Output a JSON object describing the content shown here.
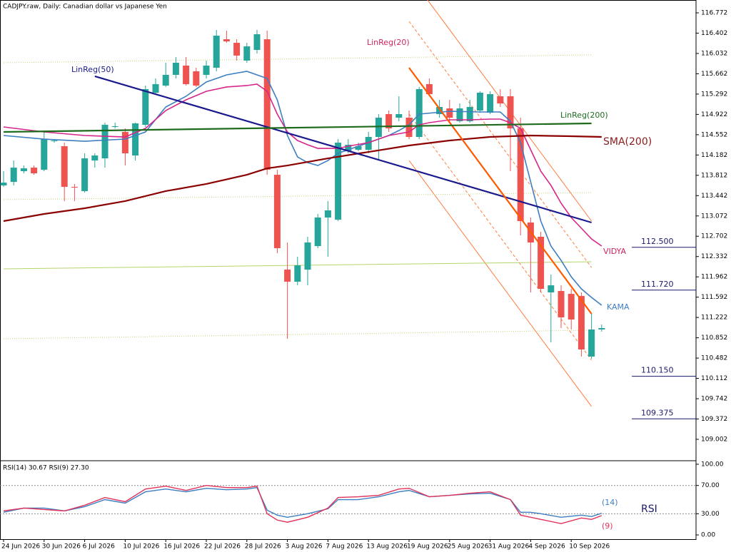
{
  "chart_data": [
    {
      "type": "candlestick",
      "title": "CADJPY.raw, Daily:  Canadian dollar vs Japanese Yen",
      "categories": [
        "24 Jun 2026",
        null,
        null,
        null,
        "30 Jun 2026",
        null,
        null,
        null,
        "6 Jul 2026",
        null,
        null,
        null,
        "10 Jul 2026",
        null,
        null,
        null,
        "16 Jul 2026",
        null,
        null,
        null,
        "22 Jul 2026",
        null,
        null,
        null,
        "28 Jul 2026",
        null,
        null,
        null,
        "3 Aug 2026",
        null,
        null,
        null,
        "7 Aug 2026",
        null,
        null,
        null,
        "13 Aug 2026",
        null,
        null,
        null,
        "19 Aug 2026",
        null,
        null,
        null,
        "25 Aug 2026",
        null,
        null,
        null,
        "31 Aug 2026",
        null,
        null,
        null,
        "4 Sep 2026",
        null,
        null,
        null,
        "10 Sep 2026",
        null,
        null,
        null
      ],
      "ohlc": [
        [
          113.628,
          113.887,
          113.602,
          113.679
        ],
        [
          113.692,
          114.082,
          113.628,
          113.952
        ],
        [
          113.887,
          113.991,
          113.848,
          113.939
        ],
        [
          113.952,
          113.991,
          113.822,
          113.848
        ],
        [
          113.913,
          114.602,
          113.887,
          114.472
        ],
        [
          114.433,
          114.472,
          114.407,
          114.446
        ],
        [
          114.342,
          114.407,
          113.342,
          113.602
        ],
        [
          113.602,
          113.654,
          113.342,
          113.589
        ],
        [
          113.524,
          114.212,
          113.498,
          114.121
        ],
        [
          114.082,
          114.212,
          113.952,
          114.173
        ],
        [
          114.121,
          114.771,
          113.952,
          114.732
        ],
        [
          114.693,
          114.771,
          114.667,
          114.706
        ],
        [
          114.602,
          114.667,
          113.991,
          114.212
        ],
        [
          114.173,
          114.771,
          114.082,
          114.758
        ],
        [
          114.732,
          115.447,
          114.693,
          115.382
        ],
        [
          115.317,
          115.577,
          115.291,
          115.473
        ],
        [
          115.447,
          115.863,
          115.421,
          115.642
        ],
        [
          115.642,
          115.967,
          115.577,
          115.863
        ],
        [
          115.811,
          115.967,
          115.447,
          115.473
        ],
        [
          115.707,
          115.772,
          115.421,
          115.447
        ],
        [
          115.642,
          115.902,
          115.577,
          115.811
        ],
        [
          115.772,
          116.46,
          115.707,
          116.356
        ],
        [
          116.291,
          116.447,
          116.226,
          116.252
        ],
        [
          116.226,
          116.291,
          115.902,
          115.993
        ],
        [
          115.902,
          116.226,
          115.863,
          116.161
        ],
        [
          116.096,
          116.46,
          116.031,
          116.382
        ],
        [
          116.291,
          116.447,
          113.822,
          113.913
        ],
        [
          113.822,
          113.913,
          112.393,
          112.484
        ],
        [
          112.094,
          112.588,
          110.834,
          111.873
        ],
        [
          111.873,
          112.328,
          111.808,
          112.172
        ],
        [
          112.094,
          112.692,
          111.808,
          112.588
        ],
        [
          112.523,
          113.108,
          112.484,
          113.043
        ],
        [
          113.043,
          113.342,
          112.328,
          113.173
        ],
        [
          113.004,
          114.472,
          112.978,
          114.407
        ],
        [
          114.251,
          114.472,
          114.212,
          114.368
        ],
        [
          114.277,
          114.407,
          114.251,
          114.342
        ],
        [
          114.277,
          114.602,
          114.212,
          114.511
        ],
        [
          114.511,
          114.927,
          114.082,
          114.862
        ],
        [
          114.927,
          114.992,
          114.602,
          114.667
        ],
        [
          114.862,
          115.252,
          114.797,
          114.927
        ],
        [
          114.862,
          114.992,
          114.472,
          114.511
        ],
        [
          114.511,
          115.421,
          114.472,
          115.382
        ],
        [
          115.473,
          115.577,
          115.252,
          115.291
        ],
        [
          114.927,
          115.187,
          114.862,
          115.057
        ],
        [
          115.031,
          115.187,
          114.797,
          114.862
        ],
        [
          114.797,
          115.122,
          114.771,
          115.031
        ],
        [
          114.797,
          115.187,
          114.771,
          115.057
        ],
        [
          114.992,
          115.343,
          114.953,
          115.317
        ],
        [
          114.953,
          115.343,
          114.927,
          115.291
        ],
        [
          115.252,
          115.382,
          115.057,
          115.122
        ],
        [
          115.252,
          115.382,
          113.887,
          114.667
        ],
        [
          114.667,
          114.862,
          112.718,
          112.978
        ],
        [
          112.952,
          113.043,
          111.678,
          112.588
        ],
        [
          112.692,
          112.783,
          111.678,
          111.743
        ],
        [
          111.678,
          112.003,
          110.769,
          111.808
        ],
        [
          111.704,
          111.808,
          111.029,
          111.224
        ],
        [
          111.652,
          111.743,
          111.003,
          111.185
        ],
        [
          111.613,
          111.678,
          110.509,
          110.639
        ],
        [
          110.509,
          111.289,
          110.47,
          111.003
        ],
        [
          111.003,
          111.094,
          110.964,
          111.029
        ]
      ],
      "up_color": "#26a69a",
      "down_color": "#ef5350",
      "lines": [
        {
          "name": "KAMA",
          "color": "#3d7fc1",
          "x": [
            0,
            4,
            8,
            12,
            14,
            16,
            18,
            20,
            22,
            24,
            26,
            27,
            28,
            29,
            30,
            31,
            32,
            33,
            35,
            36,
            37,
            38,
            39,
            40,
            41,
            44,
            47,
            49,
            50,
            51,
            52,
            53,
            54,
            55,
            56,
            57,
            58,
            59
          ],
          "values": [
            114.537,
            114.472,
            114.433,
            114.472,
            114.602,
            115.057,
            115.252,
            115.512,
            115.642,
            115.707,
            115.577,
            115.187,
            114.537,
            114.147,
            114.043,
            113.991,
            114.082,
            114.212,
            114.342,
            114.407,
            114.472,
            114.537,
            114.628,
            114.732,
            114.927,
            114.979,
            114.966,
            114.966,
            114.797,
            114.407,
            113.692,
            112.978,
            112.523,
            112.263,
            111.964,
            111.743,
            111.588,
            111.445
          ]
        },
        {
          "name": "VIDYA",
          "color": "#d6268a",
          "x": [
            0,
            4,
            8,
            12,
            14,
            16,
            18,
            20,
            22,
            24,
            25,
            26,
            27,
            28,
            29,
            30,
            31,
            33,
            34,
            36,
            38,
            40,
            41,
            42,
            44,
            46,
            48,
            49,
            50,
            51,
            52,
            53,
            54,
            55,
            56,
            57,
            58,
            59
          ],
          "values": [
            114.693,
            114.602,
            114.537,
            114.511,
            114.667,
            114.992,
            115.187,
            115.343,
            115.421,
            115.447,
            115.473,
            115.343,
            114.927,
            114.602,
            114.446,
            114.368,
            114.303,
            114.303,
            114.342,
            114.407,
            114.537,
            114.602,
            114.732,
            114.771,
            114.823,
            114.823,
            114.836,
            114.836,
            114.771,
            114.667,
            114.277,
            113.887,
            113.628,
            113.303,
            113.043,
            112.848,
            112.653,
            112.523
          ]
        },
        {
          "name": "SMA(200)",
          "color": "#8b0000",
          "x": [
            0,
            4,
            8,
            12,
            16,
            20,
            24,
            26,
            28,
            32,
            36,
            40,
            44,
            48,
            52,
            56,
            59
          ],
          "values": [
            112.978,
            113.108,
            113.212,
            113.342,
            113.524,
            113.654,
            113.822,
            113.939,
            113.991,
            114.121,
            114.238,
            114.355,
            114.446,
            114.511,
            114.537,
            114.524,
            114.511
          ]
        },
        {
          "name": "LinReg(50)",
          "color": "#1a1a8c",
          "x": [
            9,
            58
          ],
          "values": [
            115.616,
            112.952
          ]
        },
        {
          "name": "LinReg(20)",
          "color": "#ff5a00",
          "x": [
            40,
            58
          ],
          "values": [
            115.772,
            111.289
          ]
        },
        {
          "name": "LinReg(200)",
          "color": "#1e6b1e",
          "x": [
            0,
            58
          ],
          "values": [
            114.602,
            114.758
          ]
        }
      ],
      "bands": [
        {
          "color": "#ff7b3a",
          "style": "solid",
          "x": [
            40,
            58
          ],
          "values": [
            117.461,
            112.978
          ]
        },
        {
          "color": "#ff7b3a",
          "style": "dashed",
          "x": [
            40,
            58
          ],
          "values": [
            116.616,
            112.133
          ]
        },
        {
          "color": "#ff7b3a",
          "style": "dashed",
          "x": [
            40,
            58
          ],
          "values": [
            114.927,
            110.444
          ]
        },
        {
          "color": "#ff7b3a",
          "style": "solid",
          "x": [
            40,
            58
          ],
          "values": [
            114.082,
            109.6
          ]
        },
        {
          "color": "#c2d27a",
          "style": "dotted",
          "x": [
            0,
            58
          ],
          "values": [
            115.863,
            116.006
          ]
        },
        {
          "color": "#c2d27a",
          "style": "dotted",
          "x": [
            0,
            58
          ],
          "values": [
            113.368,
            113.498
          ]
        },
        {
          "color": "#b5d46a",
          "style": "solid",
          "x": [
            0,
            58
          ],
          "values": [
            112.107,
            112.237
          ]
        },
        {
          "color": "#c2d27a",
          "style": "dotted",
          "x": [
            0,
            58
          ],
          "values": [
            110.834,
            110.99
          ]
        }
      ],
      "levels": [
        {
          "value": 112.5,
          "label": "112.500"
        },
        {
          "value": 111.72,
          "label": "111.720"
        },
        {
          "value": 110.15,
          "label": "110.150"
        },
        {
          "value": 109.375,
          "label": "109.375"
        }
      ],
      "level_color": "#1a1a6e",
      "ylim": [
        108.625,
        117.006
      ],
      "yticks": [
        116.772,
        116.402,
        116.032,
        115.662,
        115.292,
        114.922,
        114.552,
        114.182,
        113.812,
        113.442,
        113.072,
        112.702,
        112.332,
        111.962,
        111.592,
        111.222,
        110.852,
        110.482,
        110.112,
        109.742,
        109.372,
        109.002
      ],
      "grid": false
    },
    {
      "type": "line",
      "title": "RSI(14) 30.67 RSI(9) 27.30",
      "label": "RSI",
      "series": [
        {
          "name": "(14)",
          "color": "#3d7fc1",
          "x": [
            0,
            2,
            4,
            6,
            8,
            10,
            12,
            14,
            16,
            18,
            20,
            22,
            24,
            25,
            26,
            27,
            28,
            30,
            32,
            33,
            35,
            37,
            39,
            40,
            42,
            44,
            46,
            48,
            50,
            51,
            52,
            53,
            55,
            57,
            58,
            59
          ],
          "values": [
            32,
            38,
            38,
            34,
            40,
            50,
            45,
            61,
            65,
            61,
            66,
            64,
            65,
            67,
            35,
            28,
            25,
            30,
            37,
            50,
            50,
            54,
            61,
            63,
            54,
            56,
            58,
            59,
            50,
            32,
            32,
            30,
            25,
            28,
            26,
            30.67
          ]
        },
        {
          "name": "(9)",
          "color": "#e0325a",
          "x": [
            0,
            2,
            4,
            6,
            8,
            10,
            12,
            14,
            16,
            18,
            20,
            22,
            24,
            25,
            26,
            27,
            28,
            30,
            32,
            33,
            35,
            37,
            39,
            40,
            42,
            44,
            46,
            48,
            50,
            51,
            52,
            53,
            55,
            57,
            58,
            59
          ],
          "values": [
            34,
            38,
            36,
            34,
            42,
            53,
            47,
            65,
            69,
            63,
            70,
            67,
            67,
            69,
            30,
            21,
            18,
            25,
            38,
            53,
            54,
            56,
            65,
            66,
            54,
            56,
            59,
            61,
            50,
            28,
            25,
            22,
            16,
            24,
            22,
            27.3
          ]
        }
      ],
      "levels": [
        70,
        30
      ],
      "ylim": [
        -7,
        104
      ],
      "yticks": [
        {
          "value": 100,
          "label": "100.00"
        },
        {
          "value": 70,
          "label": "70.00"
        },
        {
          "value": 30,
          "label": "30.00"
        },
        {
          "value": 0,
          "label": "0.00"
        }
      ]
    }
  ]
}
